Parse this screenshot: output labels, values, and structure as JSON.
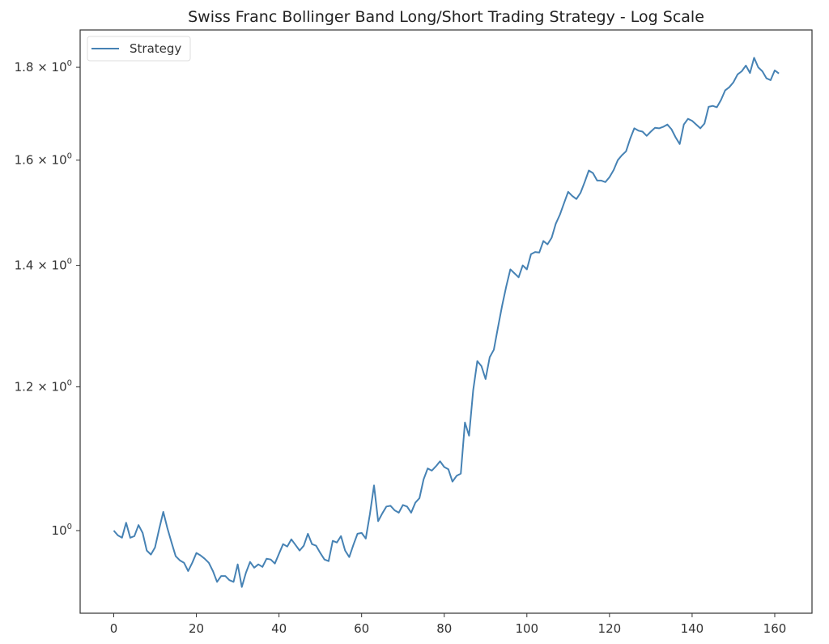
{
  "chart_data": {
    "type": "line",
    "title": "Swiss Franc Bollinger Band Long/Short Trading Strategy - Log Scale",
    "xlabel": "",
    "ylabel": "",
    "yscale": "log",
    "xlim": [
      -8,
      169
    ],
    "ylim": [
      0.92,
      1.88
    ],
    "grid": false,
    "legend_position": "upper left",
    "line_color": "#4682b4",
    "x_ticks": [
      0,
      20,
      40,
      60,
      80,
      100,
      120,
      140,
      160
    ],
    "x_tick_labels": [
      "0",
      "20",
      "40",
      "60",
      "80",
      "100",
      "120",
      "140",
      "160"
    ],
    "y_ticks": [
      1.0,
      1.2,
      1.4,
      1.6,
      1.8
    ],
    "y_tick_labels": [
      {
        "mantissa": "",
        "base": "10",
        "exp": "0"
      },
      {
        "mantissa": "1.2 × ",
        "base": "10",
        "exp": "0"
      },
      {
        "mantissa": "1.4 × ",
        "base": "10",
        "exp": "0"
      },
      {
        "mantissa": "1.6 × ",
        "base": "10",
        "exp": "0"
      },
      {
        "mantissa": "1.8 × ",
        "base": "10",
        "exp": "0"
      }
    ],
    "series": [
      {
        "name": "Strategy",
        "values": [
          1.0,
          0.994,
          0.991,
          1.01,
          0.991,
          0.993,
          1.007,
          0.997,
          0.975,
          0.97,
          0.979,
          1.002,
          1.024,
          1.003,
          0.985,
          0.968,
          0.963,
          0.96,
          0.95,
          0.96,
          0.972,
          0.969,
          0.965,
          0.96,
          0.95,
          0.937,
          0.944,
          0.944,
          0.939,
          0.937,
          0.958,
          0.931,
          0.948,
          0.961,
          0.954,
          0.958,
          0.955,
          0.965,
          0.964,
          0.959,
          0.971,
          0.983,
          0.98,
          0.989,
          0.982,
          0.975,
          0.981,
          0.996,
          0.983,
          0.981,
          0.972,
          0.964,
          0.962,
          0.987,
          0.985,
          0.993,
          0.975,
          0.967,
          0.982,
          0.996,
          0.997,
          0.99,
          1.021,
          1.059,
          1.012,
          1.022,
          1.031,
          1.032,
          1.026,
          1.023,
          1.033,
          1.031,
          1.023,
          1.036,
          1.042,
          1.067,
          1.082,
          1.079,
          1.085,
          1.092,
          1.084,
          1.081,
          1.064,
          1.072,
          1.075,
          1.147,
          1.128,
          1.195,
          1.24,
          1.232,
          1.212,
          1.246,
          1.258,
          1.294,
          1.33,
          1.363,
          1.393,
          1.386,
          1.379,
          1.4,
          1.393,
          1.42,
          1.424,
          1.423,
          1.444,
          1.438,
          1.45,
          1.476,
          1.493,
          1.515,
          1.537,
          1.529,
          1.523,
          1.535,
          1.556,
          1.579,
          1.574,
          1.559,
          1.559,
          1.556,
          1.566,
          1.58,
          1.6,
          1.61,
          1.618,
          1.644,
          1.666,
          1.661,
          1.659,
          1.65,
          1.659,
          1.667,
          1.666,
          1.669,
          1.674,
          1.664,
          1.647,
          1.633,
          1.674,
          1.686,
          1.682,
          1.674,
          1.666,
          1.676,
          1.712,
          1.714,
          1.711,
          1.727,
          1.748,
          1.755,
          1.766,
          1.784,
          1.791,
          1.804,
          1.787,
          1.822,
          1.8,
          1.791,
          1.775,
          1.771,
          1.793,
          1.786
        ]
      }
    ]
  },
  "legend": {
    "label": "Strategy"
  }
}
